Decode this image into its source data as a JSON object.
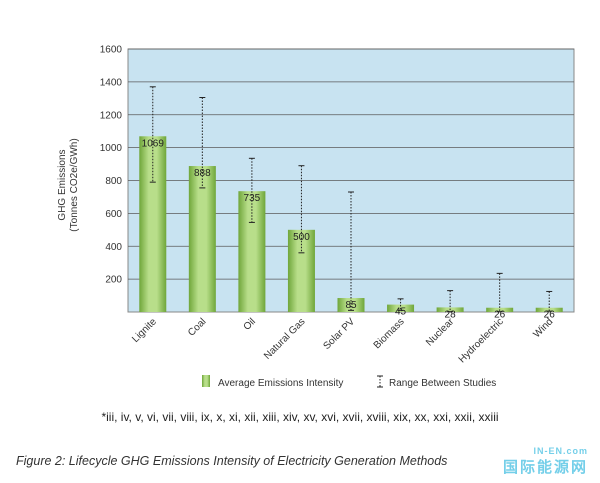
{
  "chart_data": {
    "type": "bar",
    "title": "",
    "xlabel": "",
    "ylabel_line1": "GHG Emissions",
    "ylabel_line2": "(Tonnes CO2e/GWh)",
    "ylim": [
      0,
      1600
    ],
    "yticks": [
      200,
      400,
      600,
      800,
      1000,
      1200,
      1400,
      1600
    ],
    "grid": true,
    "categories": [
      "Lignite",
      "Coal",
      "Oil",
      "Natural Gas",
      "Solar PV",
      "Biomass",
      "Nuclear",
      "Hydroelectric",
      "Wind"
    ],
    "values": [
      1069,
      888,
      735,
      500,
      85,
      45,
      28,
      26,
      26
    ],
    "range_low": [
      790,
      755,
      545,
      360,
      10,
      10,
      2,
      2,
      5
    ],
    "range_high": [
      1370,
      1305,
      935,
      890,
      730,
      80,
      130,
      235,
      125
    ],
    "legend": {
      "position": "bottom",
      "bar_label": "Average Emissions Intensity",
      "range_label": "Range Between Studies"
    },
    "colors": {
      "plot_bg": "#c8e3f1",
      "bar_light": "#c5e39a",
      "bar_dark": "#6fa63a"
    }
  },
  "footnote": "*iii, iv, v, vi, vii, viii, ix, x, xi, xii, xiii, xiv, xv, xvi, xvii, xviii, xix, xx, xxi, xxii, xxiii",
  "caption": "Figure 2: Lifecycle GHG Emissions Intensity of Electricity Generation Methods",
  "watermark": {
    "small": "IN-EN.com",
    "big": "国际能源网"
  }
}
